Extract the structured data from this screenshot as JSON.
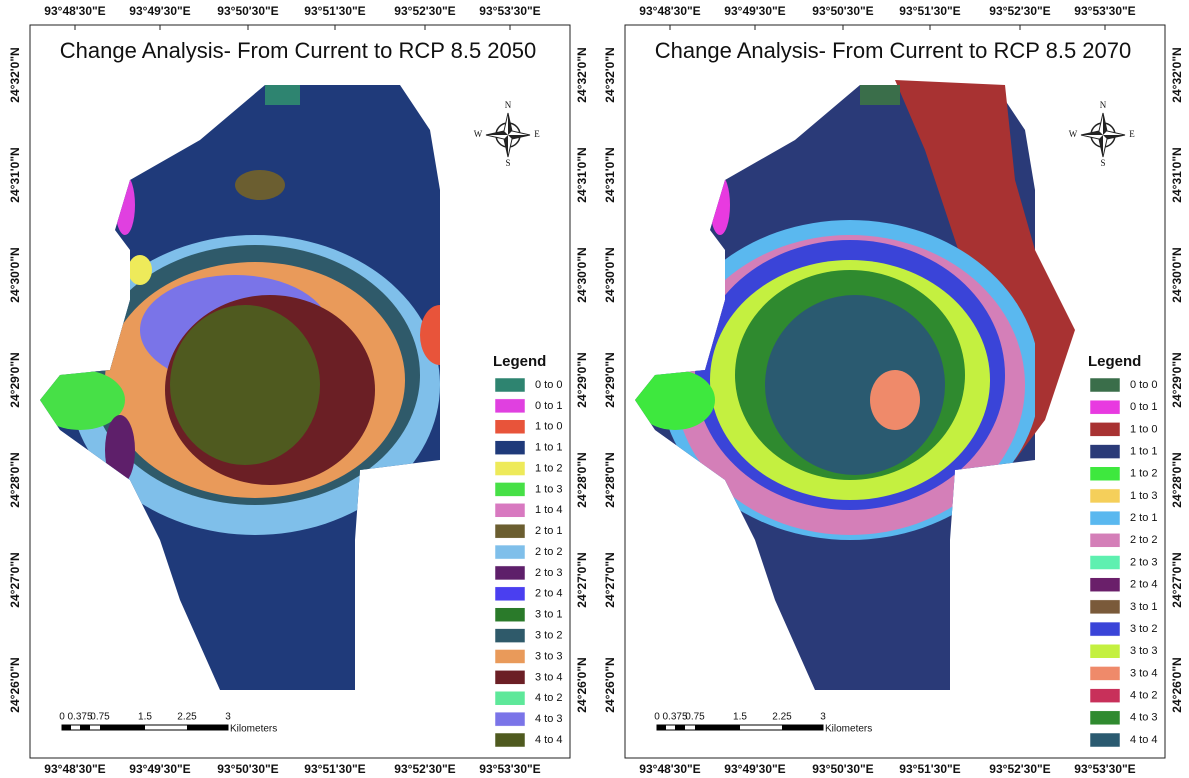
{
  "panels": [
    {
      "title": "Change Analysis- From Current to RCP 8.5 2050",
      "top_ticks": [
        "93°48'30\"E",
        "93°49'30\"E",
        "93°50'30\"E",
        "93°51'30\"E",
        "93°52'30\"E",
        "93°53'30\"E"
      ],
      "bottom_ticks": [
        "93°48'30\"E",
        "93°49'30\"E",
        "93°50'30\"E",
        "93°51'30\"E",
        "93°52'30\"E",
        "93°53'30\"E"
      ],
      "left_ticks": [
        "24°32'0\"N",
        "24°31'0\"N",
        "24°30'0\"N",
        "24°29'0\"N",
        "24°28'0\"N",
        "24°27'0\"N",
        "24°26'0\"N"
      ],
      "right_ticks": [
        "24°32'0\"N",
        "24°31'0\"N",
        "24°30'0\"N",
        "24°29'0\"N",
        "24°28'0\"N",
        "24°27'0\"N",
        "24°26'0\"N"
      ],
      "compass": {
        "n": "N",
        "s": "S",
        "e": "E",
        "w": "W"
      },
      "scale": {
        "labels": [
          "0",
          "0.375",
          "0.75",
          "1.5",
          "2.25",
          "3"
        ],
        "unit": "Kilometers"
      },
      "legend": {
        "title": "Legend",
        "items": [
          {
            "label": "0 to 0",
            "color": "#2e8470"
          },
          {
            "label": "0 to 1",
            "color": "#e040e0"
          },
          {
            "label": "1 to 0",
            "color": "#e8543a"
          },
          {
            "label": "1 to 1",
            "color": "#1f3a7a"
          },
          {
            "label": "1 to 2",
            "color": "#eeea5a"
          },
          {
            "label": "1 to 3",
            "color": "#47e047"
          },
          {
            "label": "1 to 4",
            "color": "#d879c0"
          },
          {
            "label": "2 to 1",
            "color": "#6b5e30"
          },
          {
            "label": "2 to 2",
            "color": "#7fbfea"
          },
          {
            "label": "2 to 3",
            "color": "#5e1f6a"
          },
          {
            "label": "2 to 4",
            "color": "#4a3ff0"
          },
          {
            "label": "3 to 1",
            "color": "#2a7a2a"
          },
          {
            "label": "3 to 2",
            "color": "#2f5a6a"
          },
          {
            "label": "3 to 3",
            "color": "#e99a5a"
          },
          {
            "label": "3 to 4",
            "color": "#6b1f25"
          },
          {
            "label": "4 to 2",
            "color": "#5ee89a"
          },
          {
            "label": "4 to 3",
            "color": "#7a74e8"
          },
          {
            "label": "4 to 4",
            "color": "#4f5a1f"
          }
        ]
      }
    },
    {
      "title": "Change Analysis- From Current to RCP 8.5 2070",
      "top_ticks": [
        "93°48'30\"E",
        "93°49'30\"E",
        "93°50'30\"E",
        "93°51'30\"E",
        "93°52'30\"E",
        "93°53'30\"E"
      ],
      "bottom_ticks": [
        "93°48'30\"E",
        "93°49'30\"E",
        "93°50'30\"E",
        "93°51'30\"E",
        "93°52'30\"E",
        "93°53'30\"E"
      ],
      "left_ticks": [
        "24°32'0\"N",
        "24°31'0\"N",
        "24°30'0\"N",
        "24°29'0\"N",
        "24°28'0\"N",
        "24°27'0\"N",
        "24°26'0\"N"
      ],
      "right_ticks": [
        "24°32'0\"N",
        "24°31'0\"N",
        "24°30'0\"N",
        "24°29'0\"N",
        "24°28'0\"N",
        "24°27'0\"N",
        "24°26'0\"N"
      ],
      "compass": {
        "n": "N",
        "s": "S",
        "e": "E",
        "w": "W"
      },
      "scale": {
        "labels": [
          "0",
          "0.375",
          "0.75",
          "1.5",
          "2.25",
          "3"
        ],
        "unit": "Kilometers"
      },
      "legend": {
        "title": "Legend",
        "items": [
          {
            "label": "0 to 0",
            "color": "#3a6e4a"
          },
          {
            "label": "0 to 1",
            "color": "#e83ae0"
          },
          {
            "label": "1 to 0",
            "color": "#a83232"
          },
          {
            "label": "1 to 1",
            "color": "#2a3a78"
          },
          {
            "label": "1 to 2",
            "color": "#3ee83e"
          },
          {
            "label": "1 to 3",
            "color": "#f5cf5a"
          },
          {
            "label": "2 to 1",
            "color": "#5ab8ef"
          },
          {
            "label": "2 to 2",
            "color": "#d47fb8"
          },
          {
            "label": "2 to 3",
            "color": "#5ef0b0"
          },
          {
            "label": "2 to 4",
            "color": "#6a1f6a"
          },
          {
            "label": "3 to 1",
            "color": "#7a5a3a"
          },
          {
            "label": "3 to 2",
            "color": "#3a44d8"
          },
          {
            "label": "3 to 3",
            "color": "#c4f040"
          },
          {
            "label": "3 to 4",
            "color": "#ef8a6a"
          },
          {
            "label": "4 to 2",
            "color": "#c8305a"
          },
          {
            "label": "4 to 3",
            "color": "#2f8a2f"
          },
          {
            "label": "4 to 4",
            "color": "#2a5a70"
          }
        ]
      }
    }
  ]
}
